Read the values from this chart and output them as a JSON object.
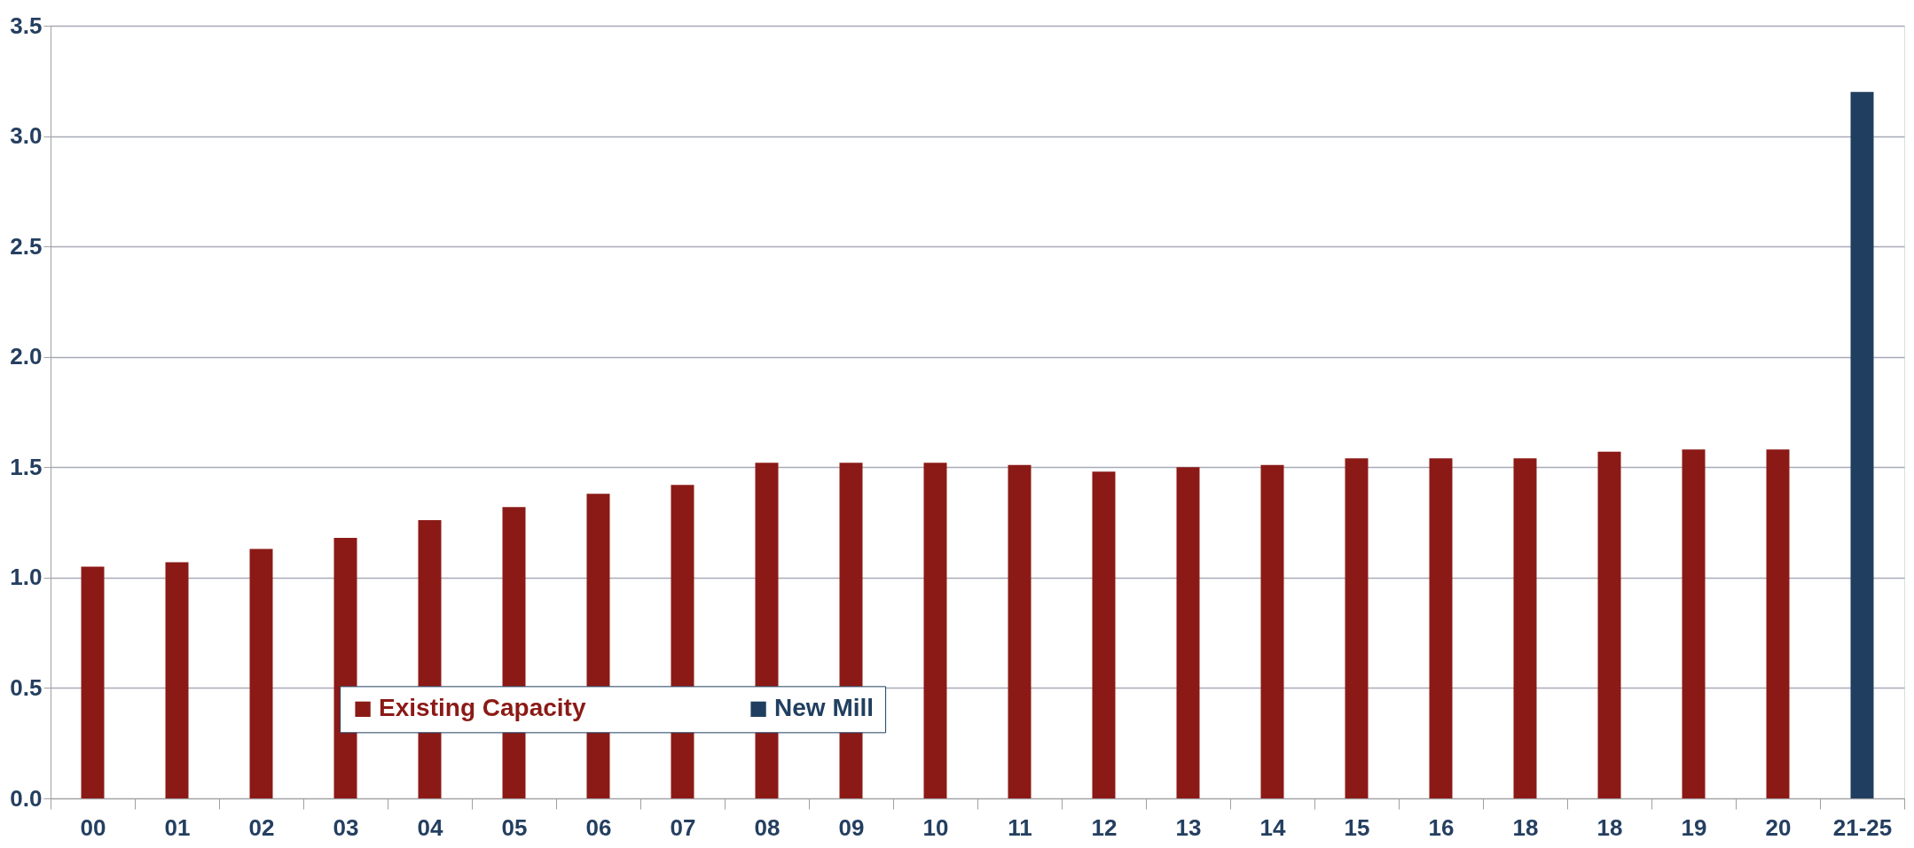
{
  "chart_data": {
    "type": "bar",
    "categories": [
      "00",
      "01",
      "02",
      "03",
      "04",
      "05",
      "06",
      "07",
      "08",
      "09",
      "10",
      "11",
      "12",
      "13",
      "14",
      "15",
      "16",
      "18",
      "18",
      "19",
      "20",
      "21-25"
    ],
    "series": [
      {
        "name": "Existing Capacity",
        "color": "#8b1a16",
        "values": [
          1.05,
          1.07,
          1.13,
          1.18,
          1.26,
          1.32,
          1.38,
          1.42,
          1.52,
          1.52,
          1.52,
          1.51,
          1.48,
          1.5,
          1.51,
          1.54,
          1.54,
          1.54,
          1.57,
          1.58,
          1.58,
          null
        ]
      },
      {
        "name": "New Mill",
        "color": "#203f60",
        "values": [
          null,
          null,
          null,
          null,
          null,
          null,
          null,
          null,
          null,
          null,
          null,
          null,
          null,
          null,
          null,
          null,
          null,
          null,
          null,
          null,
          null,
          3.2
        ]
      }
    ],
    "ylim": [
      0,
      3.5
    ],
    "yticks": [
      {
        "value": 0,
        "label": "0.0"
      },
      {
        "value": 0.5,
        "label": "0.5"
      },
      {
        "value": 1,
        "label": "1.0"
      },
      {
        "value": 1.5,
        "label": "1.5"
      },
      {
        "value": 2,
        "label": "2.0"
      },
      {
        "value": 2.5,
        "label": "2.5"
      },
      {
        "value": 3,
        "label": "3.0"
      },
      {
        "value": 3.5,
        "label": "3.5"
      }
    ],
    "grid": "y",
    "legend": "bottom"
  }
}
